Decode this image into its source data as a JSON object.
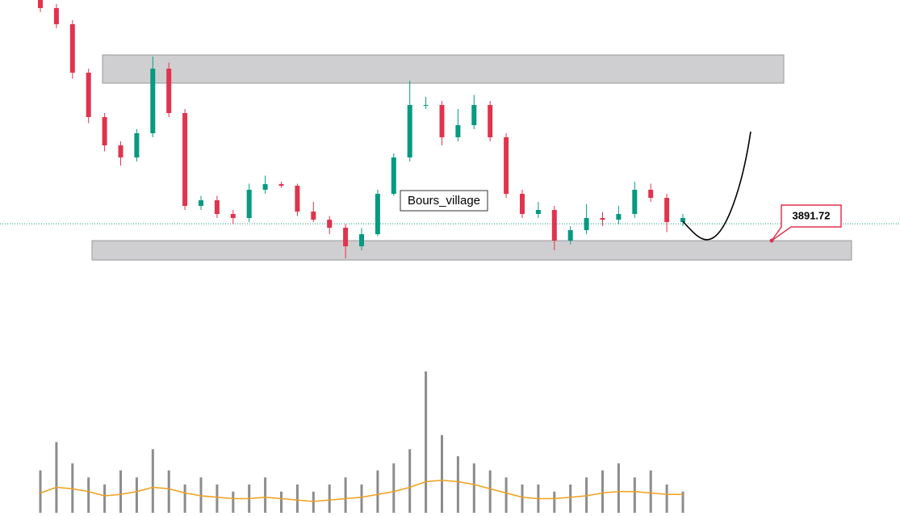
{
  "chart_data": [
    {
      "type": "candlestick",
      "open": [
        5000,
        4960,
        4880,
        4640,
        4420,
        4280,
        4220,
        4340,
        4660,
        4440,
        3980,
        4008,
        3940,
        3920,
        4060,
        4088,
        4080,
        3952,
        3912,
        3872,
        3780,
        3840,
        4040,
        4220,
        4480,
        4480,
        4320,
        4380,
        4480,
        4320,
        4040,
        3940,
        3960,
        3808,
        3860,
        3920,
        3912,
        3940,
        4060,
        4020,
        3900
      ],
      "high": [
        5000,
        4980,
        4900,
        4660,
        4440,
        4300,
        4360,
        4720,
        4690,
        4460,
        4030,
        4030,
        3960,
        4090,
        4130,
        4100,
        4090,
        4000,
        3930,
        3890,
        3870,
        4060,
        4240,
        4600,
        4520,
        4500,
        4460,
        4530,
        4500,
        4340,
        4060,
        4000,
        3980,
        3880,
        3990,
        3950,
        3980,
        4100,
        4090,
        4040,
        3940
      ],
      "low": [
        4940,
        4860,
        4610,
        4390,
        4250,
        4180,
        4200,
        4320,
        4420,
        3960,
        3960,
        3920,
        3890,
        3900,
        4040,
        4070,
        3930,
        3900,
        3840,
        3720,
        3760,
        3830,
        4030,
        4200,
        4460,
        4280,
        4300,
        4360,
        4300,
        4020,
        3920,
        3920,
        3760,
        3790,
        3840,
        3880,
        3890,
        3920,
        4000,
        3850,
        3880
      ],
      "close": [
        4960,
        4880,
        4640,
        4420,
        4280,
        4220,
        4340,
        4660,
        4440,
        3980,
        4008,
        3940,
        3920,
        4060,
        4088,
        4080,
        3952,
        3912,
        3872,
        3780,
        3840,
        4040,
        4220,
        4480,
        4480,
        4320,
        4380,
        4480,
        4320,
        4040,
        3940,
        3960,
        3808,
        3860,
        3920,
        3912,
        3940,
        4060,
        4020,
        3900,
        3920
      ],
      "up_color": "#089981",
      "down_color": "#e0344e",
      "ylim": [
        3400,
        5000
      ],
      "zones": [
        {
          "top": 4728,
          "bottom": 4588
        },
        {
          "top": 3808,
          "bottom": 3712
        }
      ],
      "last_price": 3891.72,
      "annotation": "Bours_village"
    },
    {
      "type": "bar",
      "values": [
        30,
        50,
        35,
        25,
        20,
        30,
        25,
        45,
        30,
        20,
        25,
        20,
        15,
        20,
        25,
        15,
        20,
        15,
        20,
        25,
        20,
        30,
        35,
        45,
        100,
        55,
        40,
        35,
        30,
        25,
        20,
        20,
        15,
        20,
        25,
        30,
        35,
        25,
        30,
        20,
        15
      ],
      "color": "#8c8c8c",
      "ma": [
        14,
        18,
        17,
        15,
        12,
        13,
        15,
        18,
        17,
        14,
        12,
        11,
        10,
        10,
        11,
        10,
        9,
        8,
        9,
        10,
        11,
        13,
        15,
        18,
        22,
        23,
        22,
        20,
        17,
        14,
        11,
        10,
        10,
        11,
        12,
        14,
        15,
        15,
        14,
        13,
        13
      ],
      "ma_color": "#f0a01e",
      "ylim": [
        0,
        100
      ]
    }
  ]
}
